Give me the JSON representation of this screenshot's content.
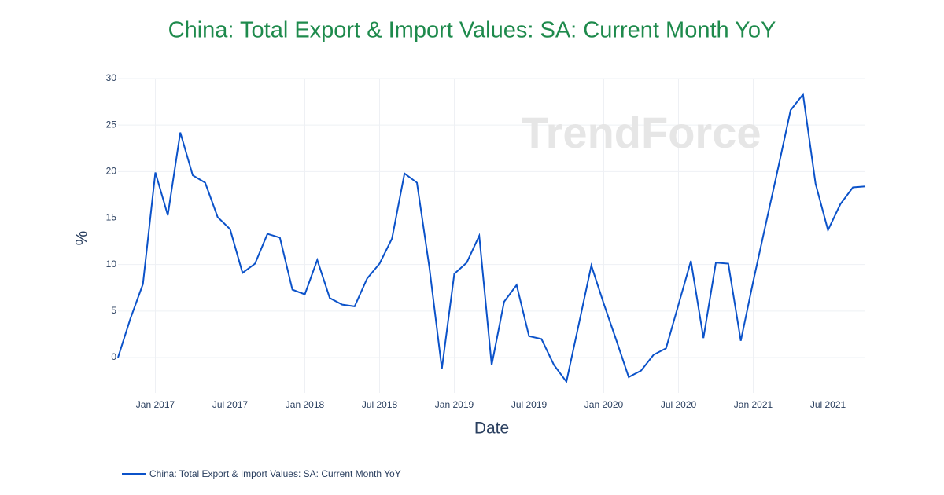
{
  "chart_data": {
    "type": "line",
    "title": "China: Total Export & Import Values: SA: Current Month YoY",
    "watermark": "TrendForce",
    "x_label": "Date",
    "y_label": "%",
    "x": [
      "2016-10",
      "2016-11",
      "2016-12",
      "2017-01",
      "2017-02",
      "2017-03",
      "2017-04",
      "2017-05",
      "2017-06",
      "2017-07",
      "2017-08",
      "2017-09",
      "2017-10",
      "2017-11",
      "2017-12",
      "2018-01",
      "2018-02",
      "2018-03",
      "2018-04",
      "2018-05",
      "2018-06",
      "2018-07",
      "2018-08",
      "2018-09",
      "2018-10",
      "2018-11",
      "2018-12",
      "2019-01",
      "2019-02",
      "2019-03",
      "2019-04",
      "2019-05",
      "2019-06",
      "2019-07",
      "2019-08",
      "2019-09",
      "2019-10",
      "2019-11",
      "2019-12",
      "2020-01",
      "2020-02",
      "2020-03",
      "2020-04",
      "2020-05",
      "2020-06",
      "2020-07",
      "2020-08",
      "2020-09",
      "2020-10",
      "2020-11",
      "2020-12",
      "2021-01",
      "2021-02",
      "2021-03",
      "2021-04",
      "2021-05",
      "2021-06",
      "2021-07",
      "2021-08",
      "2021-09",
      "2021-10"
    ],
    "series": [
      {
        "name": "China: Total Export & Import Values: SA: Current Month YoY",
        "color": "#0b52c9",
        "values": [
          0,
          4.2,
          7.9,
          19.9,
          15.3,
          24.2,
          19.6,
          18.8,
          15.1,
          13.8,
          9.1,
          10.1,
          13.3,
          12.9,
          7.3,
          6.8,
          10.5,
          6.4,
          5.7,
          5.5,
          8.5,
          10.1,
          12.8,
          19.8,
          18.8,
          9.7,
          -1.2,
          9.0,
          10.2,
          13.1,
          -0.8,
          6.0,
          7.8,
          2.3,
          2.0,
          -0.8,
          -2.6,
          3.6,
          9.9,
          5.8,
          1.9,
          -2.1,
          -1.4,
          0.3,
          1.0,
          5.7,
          10.4,
          2.1,
          10.2,
          10.1,
          1.8,
          8.2,
          14.3,
          20.4,
          26.6,
          28.3,
          18.7,
          13.7,
          16.5,
          18.3,
          18.4
        ]
      }
    ],
    "xlim": [
      "2016-10",
      "2021-10"
    ],
    "xticks": [
      {
        "value": "2017-01",
        "label": "Jan 2017"
      },
      {
        "value": "2017-07",
        "label": "Jul 2017"
      },
      {
        "value": "2018-01",
        "label": "Jan 2018"
      },
      {
        "value": "2018-07",
        "label": "Jul 2018"
      },
      {
        "value": "2019-01",
        "label": "Jan 2019"
      },
      {
        "value": "2019-07",
        "label": "Jul 2019"
      },
      {
        "value": "2020-01",
        "label": "Jan 2020"
      },
      {
        "value": "2020-07",
        "label": "Jul 2020"
      },
      {
        "value": "2021-01",
        "label": "Jan 2021"
      },
      {
        "value": "2021-07",
        "label": "Jul 2021"
      }
    ],
    "ylim": [
      -3.8,
      30
    ],
    "yticks": [
      0,
      5,
      10,
      15,
      20,
      25,
      30
    ],
    "grid": true
  }
}
